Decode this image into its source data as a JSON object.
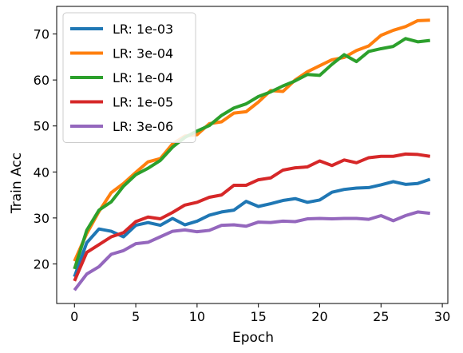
{
  "chart_data": {
    "type": "line",
    "xlabel": "Epoch",
    "ylabel": "Train Acc",
    "xlim": [
      -1.45,
      30.45
    ],
    "ylim": [
      11.4,
      76.0
    ],
    "xticks": [
      0,
      5,
      10,
      15,
      20,
      25,
      30
    ],
    "yticks": [
      20,
      30,
      40,
      50,
      60,
      70
    ],
    "grid": false,
    "legend": "top-left",
    "x": [
      0,
      1,
      2,
      3,
      4,
      5,
      6,
      7,
      8,
      9,
      10,
      11,
      12,
      13,
      14,
      15,
      16,
      17,
      18,
      19,
      20,
      21,
      22,
      23,
      24,
      25,
      26,
      27,
      28,
      29
    ],
    "series": [
      {
        "name": "LR: 1e-03",
        "color": "#1f77b4",
        "values": [
          17.2,
          24.6,
          27.6,
          27.1,
          25.9,
          28.4,
          29.0,
          28.4,
          29.9,
          28.5,
          29.3,
          30.6,
          31.3,
          31.7,
          33.6,
          32.5,
          33.1,
          33.8,
          34.2,
          33.4,
          33.9,
          35.6,
          36.2,
          36.5,
          36.6,
          37.2,
          37.9,
          37.3,
          37.5,
          38.4
        ]
      },
      {
        "name": "LR: 3e-04",
        "color": "#ff7f0e",
        "values": [
          20.6,
          26.6,
          31.4,
          35.5,
          37.5,
          39.9,
          42.2,
          42.9,
          46.1,
          47.8,
          48.1,
          50.5,
          50.9,
          52.8,
          53.1,
          55.2,
          57.7,
          57.5,
          60.0,
          61.8,
          63.1,
          64.4,
          64.9,
          66.4,
          67.4,
          69.7,
          70.8,
          71.6,
          72.9,
          73.0
        ]
      },
      {
        "name": "LR: 1e-04",
        "color": "#2ca02c",
        "values": [
          18.9,
          27.3,
          31.7,
          33.5,
          36.9,
          39.4,
          40.8,
          42.5,
          45.4,
          47.5,
          48.9,
          50.1,
          52.3,
          53.9,
          54.8,
          56.4,
          57.4,
          58.7,
          59.8,
          61.2,
          61.0,
          63.4,
          65.5,
          64.0,
          66.2,
          66.8,
          67.3,
          69.0,
          68.3,
          68.6
        ]
      },
      {
        "name": "LR: 1e-05",
        "color": "#d62728",
        "values": [
          16.3,
          22.5,
          24.2,
          25.9,
          26.8,
          29.2,
          30.2,
          29.8,
          31.2,
          32.8,
          33.4,
          34.5,
          35.0,
          37.1,
          37.1,
          38.3,
          38.7,
          40.4,
          40.9,
          41.1,
          42.4,
          41.4,
          42.6,
          42.0,
          43.1,
          43.4,
          43.4,
          43.9,
          43.8,
          43.4
        ]
      },
      {
        "name": "LR: 3e-06",
        "color": "#9467bd",
        "values": [
          14.3,
          17.8,
          19.4,
          22.1,
          22.9,
          24.4,
          24.7,
          25.9,
          27.1,
          27.4,
          27.0,
          27.3,
          28.4,
          28.5,
          28.2,
          29.1,
          29.0,
          29.3,
          29.2,
          29.8,
          29.9,
          29.8,
          29.9,
          29.9,
          29.7,
          30.5,
          29.4,
          30.5,
          31.3,
          31.0
        ]
      }
    ]
  }
}
